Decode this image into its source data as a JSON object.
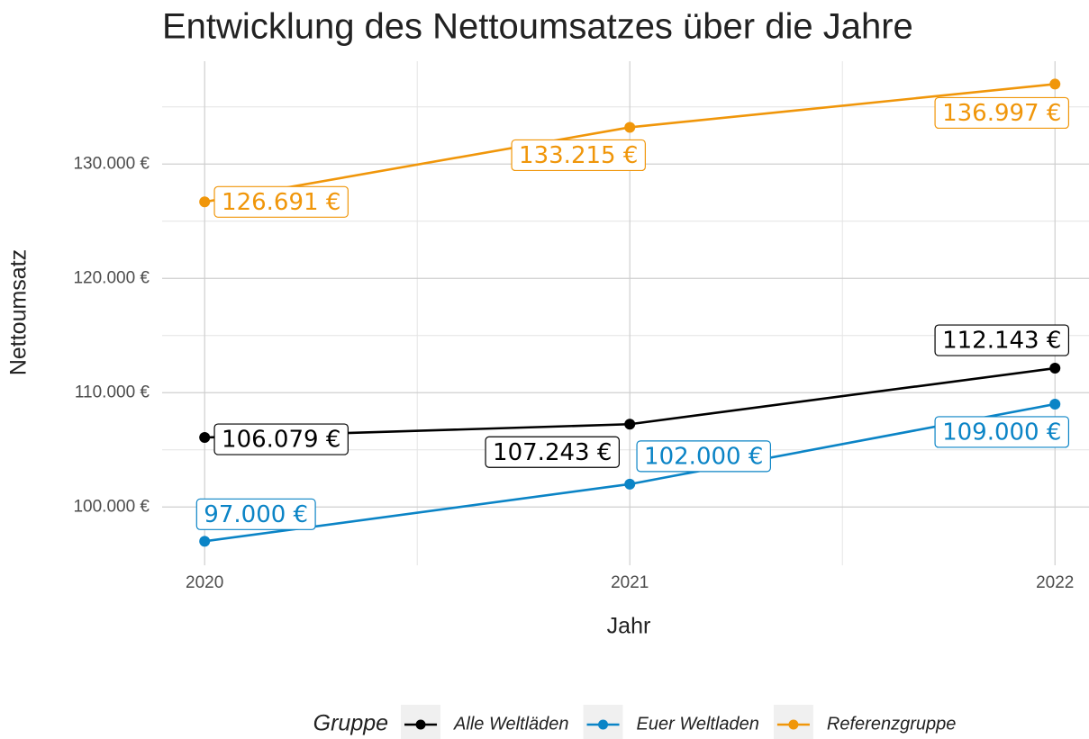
{
  "chart_data": {
    "type": "line",
    "title": "Entwicklung des Nettoumsatzes über die Jahre",
    "x_label": "Jahr",
    "y_label": "Nettoumsatz",
    "x": [
      2020,
      2021,
      2022
    ],
    "xlim": [
      2019.9,
      2022.08
    ],
    "xticks": [
      2020,
      2021,
      2022
    ],
    "ylim": [
      94900,
      139000
    ],
    "yticks": [
      {
        "value": 100000,
        "label": "100.000 €"
      },
      {
        "value": 110000,
        "label": "110.000 €"
      },
      {
        "value": 120000,
        "label": "120.000 €"
      },
      {
        "value": 130000,
        "label": "130.000 €"
      }
    ],
    "grid": true,
    "legend_title": "Gruppe",
    "legend_position": "bottom",
    "series": [
      {
        "name": "Alle Weltläden",
        "color": "#000000",
        "values": [
          106079,
          107243,
          112143
        ],
        "value_labels": [
          "106.079 €",
          "107.243 €",
          "112.143 €"
        ]
      },
      {
        "name": "Euer Weltladen",
        "color": "#0b84c6",
        "values": [
          97000,
          102000,
          109000
        ],
        "value_labels": [
          "97.000 €",
          "102.000 €",
          "109.000 €"
        ]
      },
      {
        "name": "Referenzgruppe",
        "color": "#f0960a",
        "values": [
          126691,
          133215,
          136997
        ],
        "value_labels": [
          "126.691 €",
          "133.215 €",
          "136.997 €"
        ]
      }
    ]
  }
}
